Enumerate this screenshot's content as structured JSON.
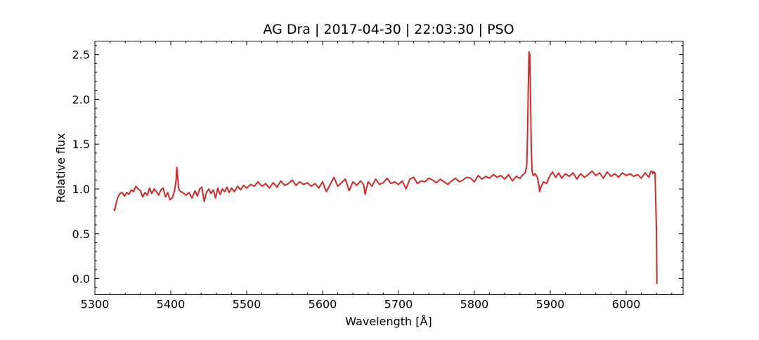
{
  "chart_data": {
    "type": "line",
    "title": "AG Dra | 2017-04-30 | 22:03:30 | PSO",
    "xlabel": "Wavelength [Å]",
    "ylabel": "Relative flux",
    "xlim": [
      5300,
      6075
    ],
    "ylim": [
      -0.18,
      2.65
    ],
    "xticks": [
      5300,
      5400,
      5500,
      5600,
      5700,
      5800,
      5900,
      6000
    ],
    "xtick_labels": [
      "5300",
      "5400",
      "5500",
      "5600",
      "5700",
      "5800",
      "5900",
      "6000"
    ],
    "yticks": [
      0.0,
      0.5,
      1.0,
      1.5,
      2.0,
      2.5
    ],
    "ytick_labels": [
      "0.0",
      "0.5",
      "1.0",
      "1.5",
      "2.0",
      "2.5"
    ],
    "grid": false,
    "line_color": "#d62728",
    "series": [
      {
        "x": [
          5325,
          5326,
          5328,
          5330,
          5333,
          5336,
          5339,
          5342,
          5345,
          5348,
          5351,
          5354,
          5357,
          5360,
          5363,
          5366,
          5369,
          5372,
          5375,
          5378,
          5381,
          5384,
          5387,
          5390,
          5393,
          5396,
          5399,
          5402,
          5405,
          5407,
          5408,
          5409,
          5410,
          5411,
          5413,
          5416,
          5420,
          5424,
          5428,
          5432,
          5435,
          5438,
          5441,
          5444,
          5447,
          5450,
          5453,
          5456,
          5459,
          5462,
          5465,
          5468,
          5471,
          5474,
          5477,
          5480,
          5484,
          5488,
          5492,
          5496,
          5500,
          5505,
          5510,
          5515,
          5520,
          5525,
          5530,
          5535,
          5540,
          5545,
          5550,
          5555,
          5560,
          5565,
          5570,
          5575,
          5580,
          5585,
          5590,
          5595,
          5600,
          5605,
          5610,
          5615,
          5620,
          5625,
          5630,
          5635,
          5640,
          5645,
          5650,
          5654,
          5656,
          5660,
          5665,
          5670,
          5675,
          5680,
          5685,
          5690,
          5695,
          5700,
          5705,
          5710,
          5715,
          5720,
          5725,
          5730,
          5735,
          5740,
          5745,
          5750,
          5755,
          5760,
          5765,
          5770,
          5775,
          5780,
          5785,
          5790,
          5795,
          5800,
          5805,
          5810,
          5815,
          5820,
          5825,
          5830,
          5835,
          5840,
          5845,
          5850,
          5855,
          5860,
          5864,
          5867,
          5869,
          5870,
          5871,
          5872,
          5873,
          5874,
          5875,
          5876,
          5877,
          5878,
          5880,
          5883,
          5885,
          5886,
          5888,
          5891,
          5895,
          5899,
          5903,
          5907,
          5911,
          5915,
          5920,
          5925,
          5930,
          5935,
          5940,
          5945,
          5950,
          5955,
          5960,
          5965,
          5970,
          5975,
          5980,
          5985,
          5990,
          5995,
          6000,
          6005,
          6010,
          6015,
          6020,
          6025,
          6030,
          6032,
          6034,
          6035,
          6036,
          6038,
          6040,
          6040.5
        ],
        "y": [
          0.78,
          0.76,
          0.84,
          0.9,
          0.95,
          0.96,
          0.92,
          0.96,
          0.94,
          0.99,
          0.97,
          1.03,
          1.0,
          0.98,
          0.91,
          0.96,
          0.93,
          1.01,
          0.95,
          1.0,
          0.97,
          0.93,
          0.99,
          1.01,
          0.91,
          0.96,
          0.88,
          0.9,
          0.98,
          1.1,
          1.24,
          1.14,
          1.03,
          0.99,
          0.97,
          0.96,
          0.93,
          0.96,
          0.9,
          0.98,
          0.92,
          1.0,
          1.02,
          0.86,
          0.96,
          1.0,
          0.95,
          0.99,
          0.9,
          1.01,
          0.94,
          1.0,
          0.97,
          1.02,
          0.96,
          1.01,
          0.97,
          1.03,
          0.99,
          1.04,
          1.01,
          1.05,
          1.03,
          1.08,
          1.03,
          1.06,
          1.01,
          1.07,
          1.02,
          1.09,
          1.04,
          1.06,
          1.1,
          1.04,
          1.08,
          1.05,
          1.07,
          1.03,
          1.06,
          1.01,
          1.08,
          0.97,
          1.05,
          1.13,
          1.03,
          1.07,
          1.11,
          0.98,
          1.08,
          1.04,
          1.09,
          1.05,
          0.94,
          1.08,
          1.03,
          1.11,
          1.05,
          1.07,
          1.12,
          1.06,
          1.08,
          1.05,
          1.09,
          1.0,
          1.11,
          1.13,
          1.06,
          1.09,
          1.08,
          1.12,
          1.1,
          1.07,
          1.11,
          1.08,
          1.05,
          1.09,
          1.12,
          1.08,
          1.1,
          1.13,
          1.12,
          1.08,
          1.15,
          1.11,
          1.14,
          1.12,
          1.16,
          1.13,
          1.15,
          1.11,
          1.16,
          1.09,
          1.14,
          1.12,
          1.16,
          1.18,
          1.26,
          1.6,
          2.1,
          2.53,
          2.5,
          2.0,
          1.45,
          1.2,
          1.16,
          1.15,
          1.17,
          1.13,
          1.04,
          0.97,
          1.03,
          1.08,
          1.06,
          1.14,
          1.19,
          1.13,
          1.18,
          1.12,
          1.17,
          1.14,
          1.18,
          1.11,
          1.17,
          1.13,
          1.16,
          1.2,
          1.15,
          1.18,
          1.12,
          1.19,
          1.14,
          1.17,
          1.13,
          1.18,
          1.15,
          1.17,
          1.14,
          1.16,
          1.12,
          1.18,
          1.13,
          1.19,
          1.2,
          1.17,
          1.19,
          1.18,
          0.5,
          -0.06
        ]
      }
    ]
  }
}
